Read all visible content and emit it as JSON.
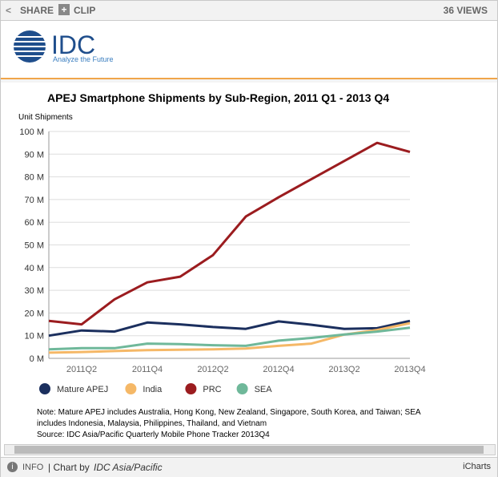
{
  "toolbar": {
    "share": "SHARE",
    "clip": "CLIP",
    "views": "36 VIEWS"
  },
  "logo": {
    "name": "IDC",
    "tagline": "Analyze the Future"
  },
  "chart_data": {
    "type": "line",
    "title": "APEJ Smartphone Shipments by Sub-Region, 2011 Q1 - 2013 Q4",
    "y_label": "Unit Shipments",
    "categories": [
      null,
      "2011Q2",
      null,
      "2011Q4",
      null,
      "2012Q2",
      null,
      "2012Q4",
      null,
      "2013Q2",
      null,
      "2013Q4"
    ],
    "ylim": [
      0,
      100
    ],
    "yticks": [
      {
        "value": 0,
        "label": "0 M"
      },
      {
        "value": 10,
        "label": "10 M"
      },
      {
        "value": 20,
        "label": "20 M"
      },
      {
        "value": 30,
        "label": "30 M"
      },
      {
        "value": 40,
        "label": "40 M"
      },
      {
        "value": 50,
        "label": "50 M"
      },
      {
        "value": 60,
        "label": "60 M"
      },
      {
        "value": 70,
        "label": "70 M"
      },
      {
        "value": 80,
        "label": "80 M"
      },
      {
        "value": 90,
        "label": "90 M"
      },
      {
        "value": 100,
        "label": "100 M"
      }
    ],
    "grid": true,
    "series": [
      {
        "name": "Mature APEJ",
        "color": "#1b2f5e",
        "values": [
          10,
          12.3,
          11.8,
          15.8,
          15,
          13.8,
          13,
          16.3,
          14.8,
          13,
          13.3,
          16.5
        ]
      },
      {
        "name": "India",
        "color": "#f5b867",
        "values": [
          2.5,
          2.8,
          3.2,
          3.6,
          3.8,
          4,
          4.3,
          5.5,
          6.5,
          10.5,
          12.5,
          15.5
        ]
      },
      {
        "name": "PRC",
        "color": "#9b1c1f",
        "values": [
          16.5,
          15,
          26,
          33.5,
          36,
          45.5,
          62.5,
          71,
          79,
          87,
          95,
          91
        ]
      },
      {
        "name": "SEA",
        "color": "#6fb89a",
        "values": [
          4,
          4.5,
          4.5,
          6.5,
          6.3,
          5.8,
          5.5,
          7.8,
          9,
          10.5,
          11.8,
          13.5
        ]
      }
    ]
  },
  "notes": [
    "Note: Mature APEJ includes Australia, Hong Kong, New Zealand, Singapore, South Korea, and Taiwan; SEA",
    "includes Indonesia, Malaysia, Philippines, Thailand, and Vietnam",
    "Source: IDC Asia/Pacific Quarterly Mobile Phone Tracker 2013Q4"
  ],
  "footer": {
    "info": "INFO",
    "chart_by": "| Chart by",
    "source": "IDC Asia/Pacific",
    "brand": "iCharts"
  }
}
